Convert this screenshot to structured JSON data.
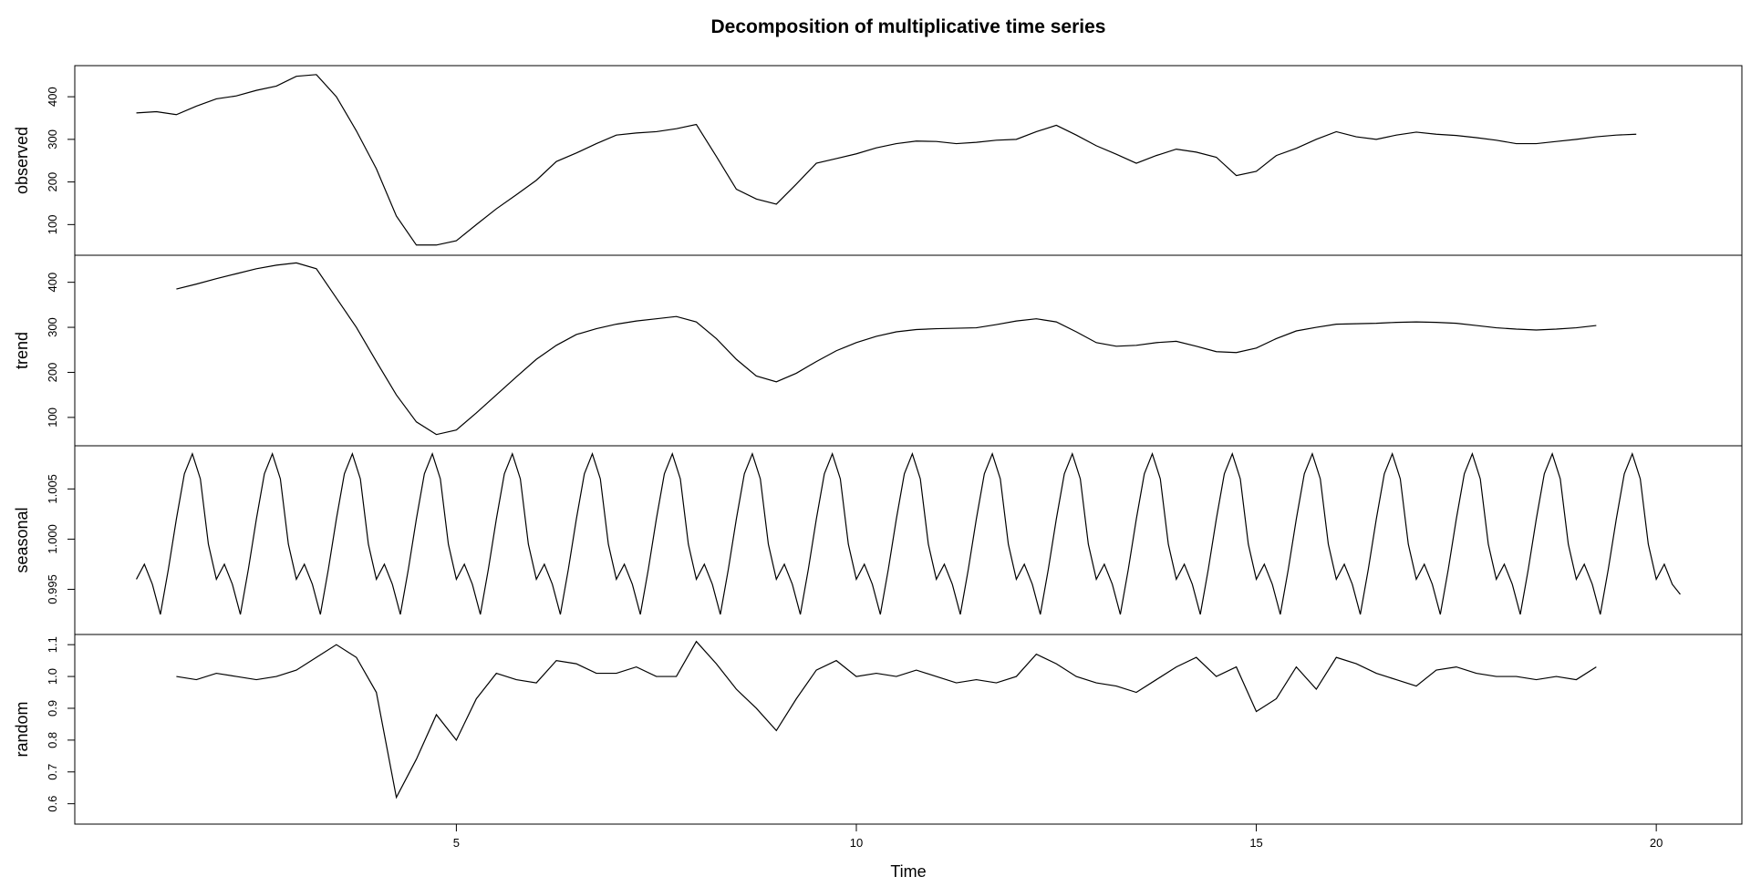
{
  "chart_data": [
    {
      "type": "line",
      "title": "Decomposition of multiplicative time series",
      "ylabel": "observed",
      "xlim": [
        0.23,
        21.07
      ],
      "ylim": [
        28,
        473
      ],
      "yticks": [
        100,
        200,
        300,
        400
      ],
      "x": [
        1,
        1.25,
        1.5,
        1.75,
        2,
        2.25,
        2.5,
        2.75,
        3,
        3.25,
        3.5,
        3.75,
        4,
        4.25,
        4.5,
        4.75,
        5,
        5.25,
        5.5,
        5.75,
        6,
        6.25,
        6.5,
        6.75,
        7,
        7.25,
        7.5,
        7.75,
        8,
        8.25,
        8.5,
        8.75,
        9,
        9.25,
        9.5,
        9.75,
        10,
        10.25,
        10.5,
        10.75,
        11,
        11.25,
        11.5,
        11.75,
        12,
        12.25,
        12.5,
        12.75,
        13,
        13.25,
        13.5,
        13.75,
        14,
        14.25,
        14.5,
        14.75,
        15,
        15.25,
        15.5,
        15.75,
        16,
        16.25,
        16.5,
        16.75,
        17,
        17.25,
        17.5,
        17.75,
        18,
        18.25,
        18.5,
        18.75,
        19,
        19.25,
        19.5,
        19.75
      ],
      "values": [
        362,
        365,
        358,
        378,
        395,
        402,
        415,
        425,
        448,
        452,
        400,
        320,
        231,
        120,
        52,
        52,
        62,
        100,
        137,
        170,
        204,
        248,
        268,
        290,
        310,
        315,
        318,
        325,
        335,
        260,
        183,
        160,
        148,
        195,
        244,
        255,
        266,
        280,
        290,
        296,
        295,
        290,
        293,
        298,
        300,
        318,
        333,
        310,
        285,
        265,
        244,
        262,
        277,
        270,
        258,
        215,
        225,
        262,
        279,
        300,
        318,
        306,
        300,
        310,
        317,
        312,
        309,
        304,
        298,
        290,
        290,
        295,
        300,
        306,
        310,
        312
      ],
      "color": "#000000"
    },
    {
      "type": "line",
      "ylabel": "trend",
      "xlim": [
        0.23,
        21.07
      ],
      "ylim": [
        37,
        460
      ],
      "yticks": [
        100,
        200,
        300,
        400
      ],
      "x": [
        1.5,
        1.75,
        2,
        2.25,
        2.5,
        2.75,
        3,
        3.25,
        3.5,
        3.75,
        4,
        4.25,
        4.5,
        4.75,
        5,
        5.25,
        5.5,
        5.75,
        6,
        6.25,
        6.5,
        6.75,
        7,
        7.25,
        7.5,
        7.75,
        8,
        8.25,
        8.5,
        8.75,
        9,
        9.25,
        9.5,
        9.75,
        10,
        10.25,
        10.5,
        10.75,
        11,
        11.25,
        11.5,
        11.75,
        12,
        12.25,
        12.5,
        12.75,
        13,
        13.25,
        13.5,
        13.75,
        14,
        14.25,
        14.5,
        14.75,
        15,
        15.25,
        15.5,
        15.75,
        16,
        16.25,
        16.5,
        16.75,
        17,
        17.25,
        17.5,
        17.75,
        18,
        18.25,
        18.5,
        18.75,
        19,
        19.25
      ],
      "values": [
        385,
        396,
        408,
        419,
        430,
        438,
        443,
        430,
        365,
        300,
        224,
        150,
        90,
        62,
        72,
        110,
        150,
        190,
        229,
        260,
        284,
        297,
        307,
        314,
        319,
        324,
        312,
        275,
        229,
        192,
        179,
        198,
        224,
        248,
        266,
        280,
        290,
        295,
        297,
        298,
        299,
        306,
        314,
        319,
        312,
        290,
        266,
        258,
        260,
        266,
        269,
        258,
        246,
        244,
        254,
        275,
        292,
        300,
        307,
        308,
        309,
        311,
        312,
        311,
        309,
        304,
        299,
        296,
        294,
        296,
        299,
        304
      ],
      "color": "#000000"
    },
    {
      "type": "line",
      "ylabel": "seasonal",
      "xlim": [
        0.23,
        21.07
      ],
      "ylim": [
        0.9905,
        1.0093
      ],
      "yticks": [
        0.995,
        {
          "value": 1,
          "label": "1.000"
        },
        1.005
      ],
      "x": [
        1,
        1.1,
        1.2,
        1.3,
        1.4,
        1.5,
        1.6,
        1.7,
        1.8,
        1.9,
        2,
        2.1,
        2.2,
        2.3,
        2.4,
        2.5,
        2.6,
        2.7,
        2.8,
        2.9,
        3,
        3.1,
        3.2,
        3.3,
        3.4,
        3.5,
        3.6,
        3.7,
        3.8,
        3.9,
        4,
        4.1,
        4.2,
        4.3,
        4.4,
        4.5,
        4.6,
        4.7,
        4.8,
        4.9,
        5,
        5.1,
        5.2,
        5.3,
        5.4,
        5.5,
        5.6,
        5.7,
        5.8,
        5.9,
        6,
        6.1,
        6.2,
        6.3,
        6.4,
        6.5,
        6.6,
        6.7,
        6.8,
        6.9,
        7,
        7.1,
        7.2,
        7.3,
        7.4,
        7.5,
        7.6,
        7.7,
        7.8,
        7.9,
        8,
        8.1,
        8.2,
        8.3,
        8.4,
        8.5,
        8.6,
        8.7,
        8.8,
        8.9,
        9,
        9.1,
        9.2,
        9.3,
        9.4,
        9.5,
        9.6,
        9.7,
        9.8,
        9.9,
        10,
        10.1,
        10.2,
        10.3,
        10.4,
        10.5,
        10.6,
        10.7,
        10.8,
        10.9,
        11,
        11.1,
        11.2,
        11.3,
        11.4,
        11.5,
        11.6,
        11.7,
        11.8,
        11.9,
        12,
        12.1,
        12.2,
        12.3,
        12.4,
        12.5,
        12.6,
        12.7,
        12.8,
        12.9,
        13,
        13.1,
        13.2,
        13.3,
        13.4,
        13.5,
        13.6,
        13.7,
        13.8,
        13.9,
        14,
        14.1,
        14.2,
        14.3,
        14.4,
        14.5,
        14.6,
        14.7,
        14.8,
        14.9,
        15,
        15.1,
        15.2,
        15.3,
        15.4,
        15.5,
        15.6,
        15.7,
        15.8,
        15.9,
        16,
        16.1,
        16.2,
        16.3,
        16.4,
        16.5,
        16.6,
        16.7,
        16.8,
        16.9,
        17,
        17.1,
        17.2,
        17.3,
        17.4,
        17.5,
        17.6,
        17.7,
        17.8,
        17.9,
        18,
        18.1,
        18.2,
        18.3,
        18.4,
        18.5,
        18.6,
        18.7,
        18.8,
        18.9,
        19,
        19.1,
        19.2,
        19.3,
        19.4,
        19.5,
        19.6,
        19.7,
        19.8,
        19.9,
        20,
        20.1,
        20.2,
        20.3
      ],
      "values": [
        0.996,
        0.9975,
        0.9955,
        0.9925,
        0.997,
        1.002,
        1.0065,
        1.0085,
        1.006,
        0.9995,
        0.996,
        0.9975,
        0.9955,
        0.9925,
        0.997,
        1.002,
        1.0065,
        1.0085,
        1.006,
        0.9995,
        0.996,
        0.9975,
        0.9955,
        0.9925,
        0.997,
        1.002,
        1.0065,
        1.0085,
        1.006,
        0.9995,
        0.996,
        0.9975,
        0.9955,
        0.9925,
        0.997,
        1.002,
        1.0065,
        1.0085,
        1.006,
        0.9995,
        0.996,
        0.9975,
        0.9955,
        0.9925,
        0.997,
        1.002,
        1.0065,
        1.0085,
        1.006,
        0.9995,
        0.996,
        0.9975,
        0.9955,
        0.9925,
        0.997,
        1.002,
        1.0065,
        1.0085,
        1.006,
        0.9995,
        0.996,
        0.9975,
        0.9955,
        0.9925,
        0.997,
        1.002,
        1.0065,
        1.0085,
        1.006,
        0.9995,
        0.996,
        0.9975,
        0.9955,
        0.9925,
        0.997,
        1.002,
        1.0065,
        1.0085,
        1.006,
        0.9995,
        0.996,
        0.9975,
        0.9955,
        0.9925,
        0.997,
        1.002,
        1.0065,
        1.0085,
        1.006,
        0.9995,
        0.996,
        0.9975,
        0.9955,
        0.9925,
        0.997,
        1.002,
        1.0065,
        1.0085,
        1.006,
        0.9995,
        0.996,
        0.9975,
        0.9955,
        0.9925,
        0.997,
        1.002,
        1.0065,
        1.0085,
        1.006,
        0.9995,
        0.996,
        0.9975,
        0.9955,
        0.9925,
        0.997,
        1.002,
        1.0065,
        1.0085,
        1.006,
        0.9995,
        0.996,
        0.9975,
        0.9955,
        0.9925,
        0.997,
        1.002,
        1.0065,
        1.0085,
        1.006,
        0.9995,
        0.996,
        0.9975,
        0.9955,
        0.9925,
        0.997,
        1.002,
        1.0065,
        1.0085,
        1.006,
        0.9995,
        0.996,
        0.9975,
        0.9955,
        0.9925,
        0.997,
        1.002,
        1.0065,
        1.0085,
        1.006,
        0.9995,
        0.996,
        0.9975,
        0.9955,
        0.9925,
        0.997,
        1.002,
        1.0065,
        1.0085,
        1.006,
        0.9995,
        0.996,
        0.9975,
        0.9955,
        0.9925,
        0.997,
        1.002,
        1.0065,
        1.0085,
        1.006,
        0.9995,
        0.996,
        0.9975,
        0.9955,
        0.9925,
        0.997,
        1.002,
        1.0065,
        1.0085,
        1.006,
        0.9995,
        0.996,
        0.9975,
        0.9955,
        0.9925,
        0.997,
        1.002,
        1.0065,
        1.0085,
        1.006,
        0.9995,
        0.996,
        0.9975,
        0.9955,
        0.9945
      ],
      "color": "#000000"
    },
    {
      "type": "line",
      "ylabel": "random",
      "xlabel": "Time",
      "xlim": [
        0.23,
        21.07
      ],
      "xticks": [
        5,
        10,
        15,
        20
      ],
      "ylim": [
        0.536,
        1.132
      ],
      "yticks": [
        0.6,
        0.7,
        0.8,
        0.9,
        {
          "value": 1,
          "label": "1.0"
        },
        1.1
      ],
      "x": [
        1.5,
        1.75,
        2,
        2.25,
        2.5,
        2.75,
        3,
        3.25,
        3.5,
        3.75,
        4,
        4.25,
        4.5,
        4.75,
        5,
        5.25,
        5.5,
        5.75,
        6,
        6.25,
        6.5,
        6.75,
        7,
        7.25,
        7.5,
        7.75,
        8,
        8.25,
        8.5,
        8.75,
        9,
        9.25,
        9.5,
        9.75,
        10,
        10.25,
        10.5,
        10.75,
        11,
        11.25,
        11.5,
        11.75,
        12,
        12.25,
        12.5,
        12.75,
        13,
        13.25,
        13.5,
        13.75,
        14,
        14.25,
        14.5,
        14.75,
        15,
        15.25,
        15.5,
        15.75,
        16,
        16.25,
        16.5,
        16.75,
        17,
        17.25,
        17.5,
        17.75,
        18,
        18.25,
        18.5,
        18.75,
        19,
        19.25
      ],
      "values": [
        1.0,
        0.99,
        1.01,
        1.0,
        0.99,
        1.0,
        1.02,
        1.06,
        1.1,
        1.06,
        0.95,
        0.62,
        0.74,
        0.88,
        0.8,
        0.93,
        1.01,
        0.99,
        0.98,
        1.05,
        1.04,
        1.01,
        1.01,
        1.03,
        1.0,
        1.0,
        1.11,
        1.04,
        0.96,
        0.9,
        0.83,
        0.93,
        1.02,
        1.05,
        1.0,
        1.01,
        1.0,
        1.02,
        1.0,
        0.98,
        0.99,
        0.98,
        1.0,
        1.07,
        1.04,
        1.0,
        0.98,
        0.97,
        0.95,
        0.99,
        1.03,
        1.06,
        1.0,
        1.03,
        0.89,
        0.93,
        1.03,
        0.96,
        1.06,
        1.04,
        1.01,
        0.99,
        0.97,
        1.02,
        1.03,
        1.01,
        1.0,
        1.0,
        0.99,
        1.0,
        0.99,
        1.03
      ],
      "color": "#000000"
    }
  ]
}
